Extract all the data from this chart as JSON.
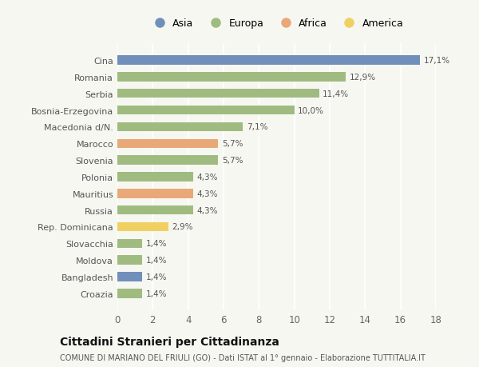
{
  "categories": [
    "Cina",
    "Romania",
    "Serbia",
    "Bosnia-Erzegovina",
    "Macedonia d/N.",
    "Marocco",
    "Slovenia",
    "Polonia",
    "Mauritius",
    "Russia",
    "Rep. Dominicana",
    "Slovacchia",
    "Moldova",
    "Bangladesh",
    "Croazia"
  ],
  "values": [
    17.1,
    12.9,
    11.4,
    10.0,
    7.1,
    5.7,
    5.7,
    4.3,
    4.3,
    4.3,
    2.9,
    1.4,
    1.4,
    1.4,
    1.4
  ],
  "labels": [
    "17,1%",
    "12,9%",
    "11,4%",
    "10,0%",
    "7,1%",
    "5,7%",
    "5,7%",
    "4,3%",
    "4,3%",
    "4,3%",
    "2,9%",
    "1,4%",
    "1,4%",
    "1,4%",
    "1,4%"
  ],
  "continents": [
    "Asia",
    "Europa",
    "Europa",
    "Europa",
    "Europa",
    "Africa",
    "Europa",
    "Europa",
    "Africa",
    "Europa",
    "America",
    "Europa",
    "Europa",
    "Asia",
    "Europa"
  ],
  "continent_colors": {
    "Asia": "#7090bb",
    "Europa": "#a0bb80",
    "Africa": "#e8a878",
    "America": "#f0d060"
  },
  "legend_order": [
    "Asia",
    "Europa",
    "Africa",
    "America"
  ],
  "title": "Cittadini Stranieri per Cittadinanza",
  "subtitle": "COMUNE DI MARIANO DEL FRIULI (GO) - Dati ISTAT al 1° gennaio - Elaborazione TUTTITALIA.IT",
  "xlim": [
    0,
    18
  ],
  "xticks": [
    0,
    2,
    4,
    6,
    8,
    10,
    12,
    14,
    16,
    18
  ],
  "background_color": "#f7f7f2",
  "bar_height": 0.55
}
